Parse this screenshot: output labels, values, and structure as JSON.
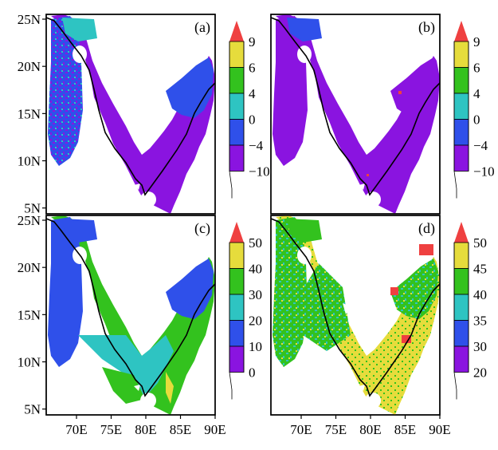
{
  "chart_data": [
    {
      "type": "heatmap",
      "panel_label": "(a)",
      "colorbar": {
        "ticks": [
          "9",
          "6",
          "4",
          "0",
          "−4",
          "−10"
        ],
        "colors": [
          "#ef4040",
          "#e6dc3c",
          "#33c21e",
          "#2ec4c2",
          "#2f50ea",
          "#8a14e0"
        ]
      },
      "x_ticks": [],
      "y_ticks": [
        "25N",
        "20N",
        "15N",
        "10N",
        "5N"
      ]
    },
    {
      "type": "heatmap",
      "panel_label": "(b)",
      "colorbar": {
        "ticks": [
          "9",
          "6",
          "4",
          "0",
          "−4",
          "−10"
        ],
        "colors": [
          "#ef4040",
          "#e6dc3c",
          "#33c21e",
          "#2ec4c2",
          "#2f50ea",
          "#8a14e0"
        ]
      },
      "x_ticks": [],
      "y_ticks": []
    },
    {
      "type": "heatmap",
      "panel_label": "(c)",
      "colorbar": {
        "ticks": [
          "50",
          "40",
          "30",
          "20",
          "10",
          "0"
        ],
        "colors": [
          "#ef4040",
          "#e6dc3c",
          "#33c21e",
          "#2ec4c2",
          "#2f50ea",
          "#8a14e0"
        ]
      },
      "x_ticks": [
        "70E",
        "75E",
        "80E",
        "85E",
        "90E"
      ],
      "y_ticks": [
        "25N",
        "20N",
        "15N",
        "10N",
        "5N"
      ]
    },
    {
      "type": "heatmap",
      "panel_label": "(d)",
      "colorbar": {
        "ticks": [
          "50",
          "45",
          "40",
          "35",
          "30",
          "20"
        ],
        "colors": [
          "#ef4040",
          "#e6dc3c",
          "#33c21e",
          "#2ec4c2",
          "#2f50ea",
          "#8a14e0"
        ]
      },
      "x_ticks": [
        "70E",
        "75E",
        "80E",
        "85E",
        "90E"
      ],
      "y_ticks": []
    }
  ]
}
